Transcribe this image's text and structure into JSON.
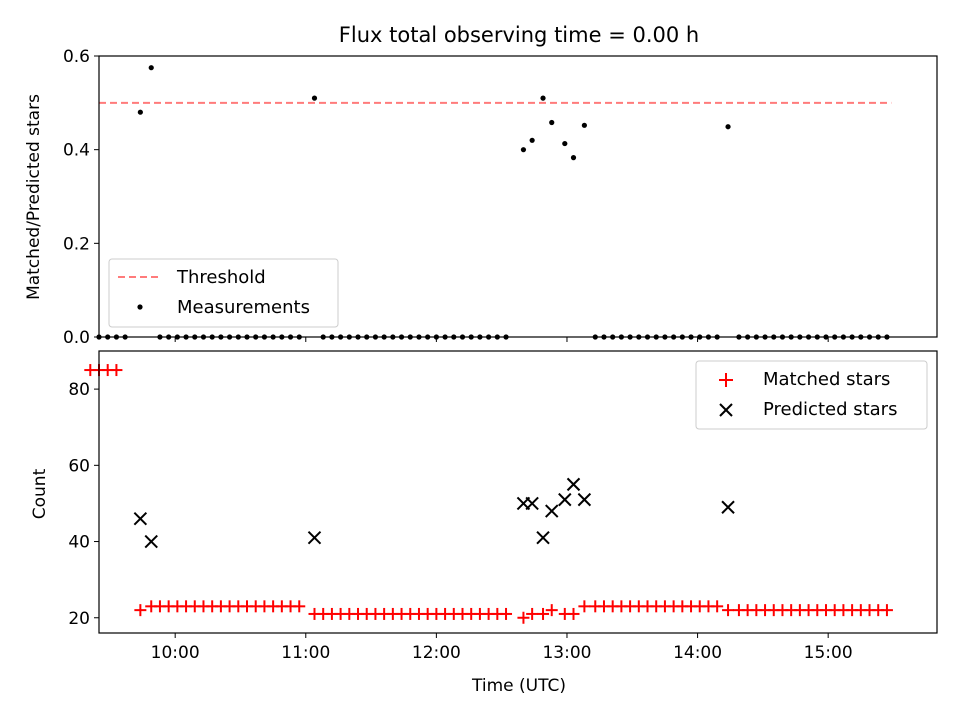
{
  "chart_data": [
    {
      "type": "scatter",
      "title": "Flux total observing time = 0.00 h",
      "xlabel": "",
      "ylabel": "Matched/Predicted stars",
      "xlim": [
        "09:25",
        "15:50"
      ],
      "ylim": [
        0,
        0.6
      ],
      "yticks": [
        "0.0",
        "0.2",
        "0.4",
        "0.6"
      ],
      "grid": false,
      "legend_position": "bottom-left",
      "threshold": {
        "name": "Threshold",
        "value": 0.5,
        "x_start": "09:25",
        "x_end": "15:29",
        "color": "#ff7b7b"
      },
      "series": [
        {
          "name": "Measurements",
          "color": "#000000",
          "points": [
            [
              "09:25",
              0
            ],
            [
              "09:29",
              0
            ],
            [
              "09:33",
              0
            ],
            [
              "09:37",
              0
            ],
            [
              "09:44",
              0.48
            ],
            [
              "09:49",
              0.575
            ],
            [
              "09:53",
              0
            ],
            [
              "09:57",
              0
            ],
            [
              "10:01",
              0
            ],
            [
              "10:05",
              0
            ],
            [
              "10:09",
              0
            ],
            [
              "10:13",
              0
            ],
            [
              "10:17",
              0
            ],
            [
              "10:21",
              0
            ],
            [
              "10:25",
              0
            ],
            [
              "10:29",
              0
            ],
            [
              "10:33",
              0
            ],
            [
              "10:37",
              0
            ],
            [
              "10:41",
              0
            ],
            [
              "10:45",
              0
            ],
            [
              "10:49",
              0
            ],
            [
              "10:53",
              0
            ],
            [
              "10:57",
              0
            ],
            [
              "11:04",
              0.51
            ],
            [
              "11:08",
              0
            ],
            [
              "11:12",
              0
            ],
            [
              "11:16",
              0
            ],
            [
              "11:20",
              0
            ],
            [
              "11:24",
              0
            ],
            [
              "11:28",
              0
            ],
            [
              "11:32",
              0
            ],
            [
              "11:36",
              0
            ],
            [
              "11:40",
              0
            ],
            [
              "11:44",
              0
            ],
            [
              "11:48",
              0
            ],
            [
              "11:52",
              0
            ],
            [
              "11:56",
              0
            ],
            [
              "12:00",
              0
            ],
            [
              "12:04",
              0
            ],
            [
              "12:08",
              0
            ],
            [
              "12:12",
              0
            ],
            [
              "12:16",
              0
            ],
            [
              "12:20",
              0
            ],
            [
              "12:24",
              0
            ],
            [
              "12:28",
              0
            ],
            [
              "12:32",
              0
            ],
            [
              "12:40",
              0.4
            ],
            [
              "12:44",
              0.42
            ],
            [
              "12:49",
              0.51
            ],
            [
              "12:53",
              0.458
            ],
            [
              "12:59",
              0.413
            ],
            [
              "13:03",
              0.383
            ],
            [
              "13:08",
              0.452
            ],
            [
              "13:13",
              0
            ],
            [
              "13:17",
              0
            ],
            [
              "13:21",
              0
            ],
            [
              "13:25",
              0
            ],
            [
              "13:29",
              0
            ],
            [
              "13:33",
              0
            ],
            [
              "13:37",
              0
            ],
            [
              "13:41",
              0
            ],
            [
              "13:45",
              0
            ],
            [
              "13:49",
              0
            ],
            [
              "13:53",
              0
            ],
            [
              "13:57",
              0
            ],
            [
              "14:01",
              0
            ],
            [
              "14:05",
              0
            ],
            [
              "14:09",
              0
            ],
            [
              "14:14",
              0.449
            ],
            [
              "14:19",
              0
            ],
            [
              "14:23",
              0
            ],
            [
              "14:27",
              0
            ],
            [
              "14:31",
              0
            ],
            [
              "14:35",
              0
            ],
            [
              "14:39",
              0
            ],
            [
              "14:43",
              0
            ],
            [
              "14:47",
              0
            ],
            [
              "14:51",
              0
            ],
            [
              "14:55",
              0
            ],
            [
              "14:59",
              0
            ],
            [
              "15:03",
              0
            ],
            [
              "15:07",
              0
            ],
            [
              "15:11",
              0
            ],
            [
              "15:15",
              0
            ],
            [
              "15:19",
              0
            ],
            [
              "15:23",
              0
            ],
            [
              "15:27",
              0
            ]
          ]
        }
      ]
    },
    {
      "type": "scatter",
      "title": "",
      "xlabel": "Time (UTC)",
      "ylabel": "Count",
      "xlim": [
        "09:25",
        "15:50"
      ],
      "ylim": [
        16,
        90
      ],
      "xticks": [
        "10:00",
        "11:00",
        "12:00",
        "13:00",
        "14:00",
        "15:00"
      ],
      "yticks": [
        "20",
        "40",
        "60",
        "80"
      ],
      "grid": false,
      "legend_position": "top-right",
      "series": [
        {
          "name": "Matched stars",
          "marker": "plus",
          "color": "#ff0000",
          "points": [
            [
              "09:21",
              85
            ],
            [
              "09:25",
              85
            ],
            [
              "09:29",
              85
            ],
            [
              "09:33",
              85
            ],
            [
              "09:44",
              22
            ],
            [
              "09:49",
              23
            ],
            [
              "09:53",
              23
            ],
            [
              "09:57",
              23
            ],
            [
              "10:01",
              23
            ],
            [
              "10:05",
              23
            ],
            [
              "10:09",
              23
            ],
            [
              "10:13",
              23
            ],
            [
              "10:17",
              23
            ],
            [
              "10:21",
              23
            ],
            [
              "10:25",
              23
            ],
            [
              "10:29",
              23
            ],
            [
              "10:33",
              23
            ],
            [
              "10:37",
              23
            ],
            [
              "10:41",
              23
            ],
            [
              "10:45",
              23
            ],
            [
              "10:49",
              23
            ],
            [
              "10:53",
              23
            ],
            [
              "10:57",
              23
            ],
            [
              "11:04",
              21
            ],
            [
              "11:08",
              21
            ],
            [
              "11:12",
              21
            ],
            [
              "11:16",
              21
            ],
            [
              "11:20",
              21
            ],
            [
              "11:24",
              21
            ],
            [
              "11:28",
              21
            ],
            [
              "11:32",
              21
            ],
            [
              "11:36",
              21
            ],
            [
              "11:40",
              21
            ],
            [
              "11:44",
              21
            ],
            [
              "11:48",
              21
            ],
            [
              "11:52",
              21
            ],
            [
              "11:56",
              21
            ],
            [
              "12:00",
              21
            ],
            [
              "12:04",
              21
            ],
            [
              "12:08",
              21
            ],
            [
              "12:12",
              21
            ],
            [
              "12:16",
              21
            ],
            [
              "12:20",
              21
            ],
            [
              "12:24",
              21
            ],
            [
              "12:28",
              21
            ],
            [
              "12:32",
              21
            ],
            [
              "12:40",
              20
            ],
            [
              "12:44",
              21
            ],
            [
              "12:49",
              21
            ],
            [
              "12:53",
              22
            ],
            [
              "12:59",
              21
            ],
            [
              "13:03",
              21
            ],
            [
              "13:08",
              23
            ],
            [
              "13:13",
              23
            ],
            [
              "13:17",
              23
            ],
            [
              "13:21",
              23
            ],
            [
              "13:25",
              23
            ],
            [
              "13:29",
              23
            ],
            [
              "13:33",
              23
            ],
            [
              "13:37",
              23
            ],
            [
              "13:41",
              23
            ],
            [
              "13:45",
              23
            ],
            [
              "13:49",
              23
            ],
            [
              "13:53",
              23
            ],
            [
              "13:57",
              23
            ],
            [
              "14:01",
              23
            ],
            [
              "14:05",
              23
            ],
            [
              "14:09",
              23
            ],
            [
              "14:14",
              22
            ],
            [
              "14:19",
              22
            ],
            [
              "14:23",
              22
            ],
            [
              "14:27",
              22
            ],
            [
              "14:31",
              22
            ],
            [
              "14:35",
              22
            ],
            [
              "14:39",
              22
            ],
            [
              "14:43",
              22
            ],
            [
              "14:47",
              22
            ],
            [
              "14:51",
              22
            ],
            [
              "14:55",
              22
            ],
            [
              "14:59",
              22
            ],
            [
              "15:03",
              22
            ],
            [
              "15:07",
              22
            ],
            [
              "15:11",
              22
            ],
            [
              "15:15",
              22
            ],
            [
              "15:19",
              22
            ],
            [
              "15:23",
              22
            ],
            [
              "15:27",
              22
            ]
          ]
        },
        {
          "name": "Predicted stars",
          "marker": "x",
          "color": "#000000",
          "points": [
            [
              "09:44",
              46
            ],
            [
              "09:49",
              40
            ],
            [
              "11:04",
              41
            ],
            [
              "12:40",
              50
            ],
            [
              "12:44",
              50
            ],
            [
              "12:49",
              41
            ],
            [
              "12:53",
              48
            ],
            [
              "12:59",
              51
            ],
            [
              "13:03",
              55
            ],
            [
              "13:08",
              51
            ],
            [
              "14:14",
              49
            ]
          ]
        }
      ]
    }
  ]
}
